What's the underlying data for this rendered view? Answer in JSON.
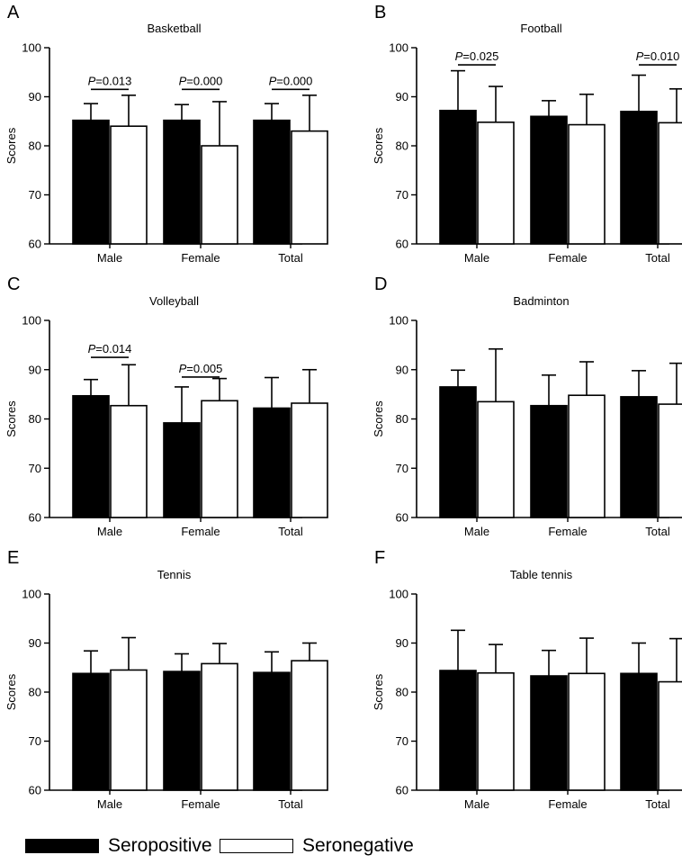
{
  "figure": {
    "legend": [
      {
        "label": "Seropositive",
        "color": "#000000"
      },
      {
        "label": "Seronegative",
        "color": "#ffffff"
      }
    ]
  },
  "chart_data": [
    {
      "type": "bar",
      "panel_letter": "A",
      "title": "Basketball",
      "categories": [
        "Male",
        "Female",
        "Total"
      ],
      "series": [
        {
          "name": "Seropositive",
          "values": [
            85.2,
            85.2,
            85.2
          ],
          "errors": [
            3.4,
            3.2,
            3.4
          ]
        },
        {
          "name": "Seronegative",
          "values": [
            84.0,
            80.0,
            83.0
          ],
          "errors": [
            6.3,
            9.0,
            7.3
          ]
        }
      ],
      "ylabel": "Scores",
      "xlabel": "",
      "ylim": [
        60,
        100
      ],
      "yticks": [
        60,
        70,
        80,
        90,
        100
      ],
      "annotations": [
        {
          "category": "Male",
          "text": "P=0.013",
          "level": 91.5
        },
        {
          "category": "Female",
          "text": "P=0.000",
          "level": 91.5
        },
        {
          "category": "Total",
          "text": "P=0.000",
          "level": 91.5
        }
      ]
    },
    {
      "type": "bar",
      "panel_letter": "B",
      "title": "Football",
      "categories": [
        "Male",
        "Female",
        "Total"
      ],
      "series": [
        {
          "name": "Seropositive",
          "values": [
            87.2,
            86.0,
            87.0
          ],
          "errors": [
            8.1,
            3.2,
            7.4
          ]
        },
        {
          "name": "Seronegative",
          "values": [
            84.8,
            84.3,
            84.7
          ],
          "errors": [
            7.3,
            6.2,
            6.9
          ]
        }
      ],
      "ylabel": "Scores",
      "xlabel": "",
      "ylim": [
        60,
        100
      ],
      "yticks": [
        60,
        70,
        80,
        90,
        100
      ],
      "annotations": [
        {
          "category": "Male",
          "text": "P=0.025",
          "level": 96.5
        },
        {
          "category": "Total",
          "text": "P=0.010",
          "level": 96.5
        }
      ]
    },
    {
      "type": "bar",
      "panel_letter": "C",
      "title": "Volleyball",
      "categories": [
        "Male",
        "Female",
        "Total"
      ],
      "series": [
        {
          "name": "Seropositive",
          "values": [
            84.7,
            79.2,
            82.2
          ],
          "errors": [
            3.3,
            7.3,
            6.2
          ]
        },
        {
          "name": "Seronegative",
          "values": [
            82.7,
            83.7,
            83.2
          ],
          "errors": [
            8.3,
            4.5,
            6.8
          ]
        }
      ],
      "ylabel": "Scores",
      "xlabel": "",
      "ylim": [
        60,
        100
      ],
      "yticks": [
        60,
        70,
        80,
        90,
        100
      ],
      "annotations": [
        {
          "category": "Male",
          "text": "P=0.014",
          "level": 92.5
        },
        {
          "category": "Female",
          "text": "P=0.005",
          "level": 88.5
        }
      ]
    },
    {
      "type": "bar",
      "panel_letter": "D",
      "title": "Badminton",
      "categories": [
        "Male",
        "Female",
        "Total"
      ],
      "series": [
        {
          "name": "Seropositive",
          "values": [
            86.5,
            82.7,
            84.5
          ],
          "errors": [
            3.4,
            6.2,
            5.3
          ]
        },
        {
          "name": "Seronegative",
          "values": [
            83.5,
            84.8,
            83.0
          ],
          "errors": [
            10.7,
            6.8,
            8.3
          ]
        }
      ],
      "ylabel": "Scores",
      "xlabel": "",
      "ylim": [
        60,
        100
      ],
      "yticks": [
        60,
        70,
        80,
        90,
        100
      ],
      "annotations": []
    },
    {
      "type": "bar",
      "panel_letter": "E",
      "title": "Tennis",
      "categories": [
        "Male",
        "Female",
        "Total"
      ],
      "series": [
        {
          "name": "Seropositive",
          "values": [
            83.8,
            84.2,
            84.0
          ],
          "errors": [
            4.6,
            3.6,
            4.2
          ]
        },
        {
          "name": "Seronegative",
          "values": [
            84.5,
            85.8,
            86.4
          ],
          "errors": [
            6.6,
            4.1,
            3.6
          ]
        }
      ],
      "ylabel": "Scores",
      "xlabel": "",
      "ylim": [
        60,
        100
      ],
      "yticks": [
        60,
        70,
        80,
        90,
        100
      ],
      "annotations": []
    },
    {
      "type": "bar",
      "panel_letter": "F",
      "title": "Table tennis",
      "categories": [
        "Male",
        "Female",
        "Total"
      ],
      "series": [
        {
          "name": "Seropositive",
          "values": [
            84.4,
            83.3,
            83.8
          ],
          "errors": [
            8.2,
            5.2,
            6.2
          ]
        },
        {
          "name": "Seronegative",
          "values": [
            83.9,
            83.8,
            82.1
          ],
          "errors": [
            5.8,
            7.2,
            8.8
          ]
        }
      ],
      "ylabel": "Scores",
      "xlabel": "",
      "ylim": [
        60,
        100
      ],
      "yticks": [
        60,
        70,
        80,
        90,
        100
      ],
      "annotations": []
    }
  ]
}
